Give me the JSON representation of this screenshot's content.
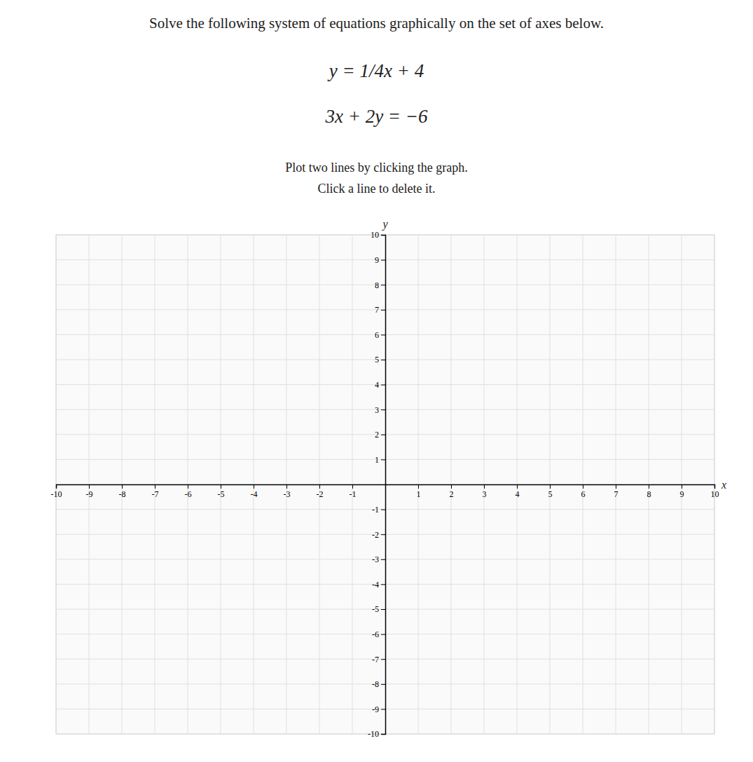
{
  "chart_data": {
    "type": "line",
    "title": "Solve the following system of equations graphically on the set of axes below.",
    "annotations": [
      "y = 1/4x + 4",
      "3x + 2y = −6",
      "Plot two lines by clicking the graph.",
      "Click a line to delete it."
    ],
    "x_label": "x",
    "y_label": "y",
    "xlim": [
      -10,
      10
    ],
    "ylim": [
      -10,
      10
    ],
    "xticks": [
      -10,
      -9,
      -8,
      -7,
      -6,
      -5,
      -4,
      -3,
      -2,
      -1,
      1,
      2,
      3,
      4,
      5,
      6,
      7,
      8,
      9,
      10
    ],
    "yticks": [
      -10,
      -9,
      -8,
      -7,
      -6,
      -5,
      -4,
      -3,
      -2,
      -1,
      1,
      2,
      3,
      4,
      5,
      6,
      7,
      8,
      9,
      10
    ],
    "grid": true
  }
}
